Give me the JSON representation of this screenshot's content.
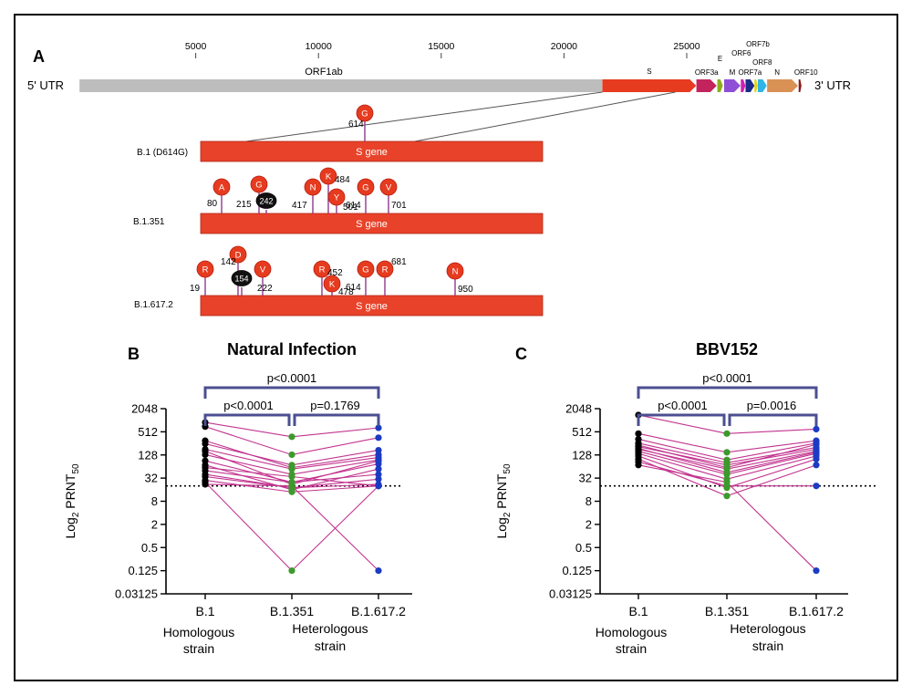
{
  "panel_a": {
    "letter": "A",
    "scale_ticks": [
      5000,
      10000,
      15000,
      20000,
      25000
    ],
    "genome_length": 29903,
    "utr5": "5' UTR",
    "utr3": "3' UTR",
    "genes": [
      {
        "name": "ORF1ab",
        "start": 266,
        "end": 21555,
        "color": "#bdbdbd"
      },
      {
        "name": "S",
        "start": 21563,
        "end": 25384,
        "color": "#e63b1f"
      },
      {
        "name": "ORF3a",
        "start": 25393,
        "end": 26220,
        "color": "#c4245e"
      },
      {
        "name": "E",
        "start": 26245,
        "end": 26472,
        "color": "#8fae1b"
      },
      {
        "name": "M",
        "start": 26523,
        "end": 27191,
        "color": "#8e4fd6"
      },
      {
        "name": "ORF6",
        "start": 27202,
        "end": 27387,
        "color": "#d11fb1"
      },
      {
        "name": "ORF7a",
        "start": 27394,
        "end": 27759,
        "color": "#1b2c8a"
      },
      {
        "name": "ORF7b",
        "start": 27756,
        "end": 27887,
        "color": "#e8d21a"
      },
      {
        "name": "ORF8",
        "start": 27894,
        "end": 28259,
        "color": "#2fb5e6"
      },
      {
        "name": "N",
        "start": 28274,
        "end": 29533,
        "color": "#d99155"
      },
      {
        "name": "ORF10",
        "start": 29558,
        "end": 29674,
        "color": "#8b1a1a"
      }
    ],
    "variants": [
      {
        "name": "B.1 (D614G)",
        "gene_label": "S gene",
        "mutations": [
          {
            "res": "G",
            "pos": "614",
            "black": false
          }
        ]
      },
      {
        "name": "B.1.351",
        "gene_label": "S gene",
        "mutations": [
          {
            "res": "A",
            "pos": "80",
            "black": false
          },
          {
            "res": "G",
            "pos": "215",
            "black": false
          },
          {
            "res": "242",
            "pos": "",
            "black": true
          },
          {
            "res": "N",
            "pos": "417",
            "black": false
          },
          {
            "res": "K",
            "pos": "484",
            "black": false
          },
          {
            "res": "Y",
            "pos": "501",
            "black": false
          },
          {
            "res": "G",
            "pos": "614",
            "black": false
          },
          {
            "res": "V",
            "pos": "701",
            "black": false
          }
        ]
      },
      {
        "name": "B.1.617.2",
        "gene_label": "S gene",
        "mutations": [
          {
            "res": "R",
            "pos": "19",
            "black": false
          },
          {
            "res": "D",
            "pos": "142",
            "black": false
          },
          {
            "res": "154",
            "pos": "",
            "black": true
          },
          {
            "res": "V",
            "pos": "222",
            "black": false
          },
          {
            "res": "R",
            "pos": "452",
            "black": false
          },
          {
            "res": "K",
            "pos": "478",
            "black": false
          },
          {
            "res": "G",
            "pos": "614",
            "black": false
          },
          {
            "res": "R",
            "pos": "681",
            "black": false
          },
          {
            "res": "N",
            "pos": "950",
            "black": false
          }
        ]
      }
    ]
  },
  "panel_b": {
    "letter": "B",
    "title": "Natural Infection",
    "p_outer": "p<0.0001",
    "p_left": "p<0.0001",
    "p_right": "p=0.1769"
  },
  "panel_c": {
    "letter": "C",
    "title": "BBV152",
    "p_outer": "p<0.0001",
    "p_left": "p<0.0001",
    "p_right": "p=0.0016"
  },
  "axis": {
    "ylabel_main": "Log",
    "ylabel_sub": "2",
    "ylabel_text": " PRNT",
    "ylabel_subscript": "50",
    "yticks": [
      "2048",
      "512",
      "128",
      "32",
      "8",
      "2",
      "0.5",
      "0.125",
      "0.03125"
    ],
    "categories": [
      "B.1",
      "B.1.351",
      "B.1.617.2"
    ],
    "group_left": [
      "Homologous",
      "strain"
    ],
    "group_right": [
      "Heterologous",
      "strain"
    ]
  },
  "colors": {
    "line": "#c2338f",
    "dot_b1": "#000000",
    "dot_b1351": "#3c9a2c",
    "dot_b16172": "#1c3bc2",
    "bracket": "#4b4f91",
    "gene_red": "#e8432a"
  },
  "chart_data": [
    {
      "type": "scatter",
      "title": "Natural Infection",
      "ylabel": "Log2 PRNT50",
      "yscale": "log2",
      "ylim": [
        0.03125,
        2048
      ],
      "threshold": 20,
      "categories": [
        "B.1",
        "B.1.351",
        "B.1.617.2"
      ],
      "pairs": [
        [
          900,
          380,
          650
        ],
        [
          700,
          130,
          360
        ],
        [
          250,
          70,
          170
        ],
        [
          180,
          55,
          110
        ],
        [
          130,
          40,
          95
        ],
        [
          90,
          25,
          75
        ],
        [
          70,
          16,
          55
        ],
        [
          50,
          25,
          40
        ],
        [
          40,
          18,
          30
        ],
        [
          35,
          18,
          22
        ],
        [
          28,
          14,
          20
        ],
        [
          25,
          0.125,
          20
        ],
        [
          22,
          20,
          0.125
        ],
        [
          300,
          60,
          130
        ],
        [
          160,
          22,
          90
        ],
        [
          60,
          35,
          20
        ]
      ]
    },
    {
      "type": "scatter",
      "title": "BBV152",
      "ylabel": "Log2 PRNT50",
      "yscale": "log2",
      "ylim": [
        0.03125,
        2048
      ],
      "threshold": 20,
      "categories": [
        "B.1",
        "B.1.351",
        "B.1.617.2"
      ],
      "pairs": [
        [
          1400,
          460,
          600
        ],
        [
          460,
          150,
          300
        ],
        [
          330,
          95,
          260
        ],
        [
          260,
          80,
          200
        ],
        [
          210,
          70,
          180
        ],
        [
          180,
          55,
          160
        ],
        [
          160,
          40,
          140
        ],
        [
          140,
          30,
          120
        ],
        [
          120,
          18,
          100
        ],
        [
          100,
          11,
          70
        ],
        [
          85,
          20,
          20
        ],
        [
          70,
          25,
          0.125
        ],
        [
          230,
          60,
          240
        ],
        [
          190,
          45,
          150
        ]
      ]
    }
  ]
}
